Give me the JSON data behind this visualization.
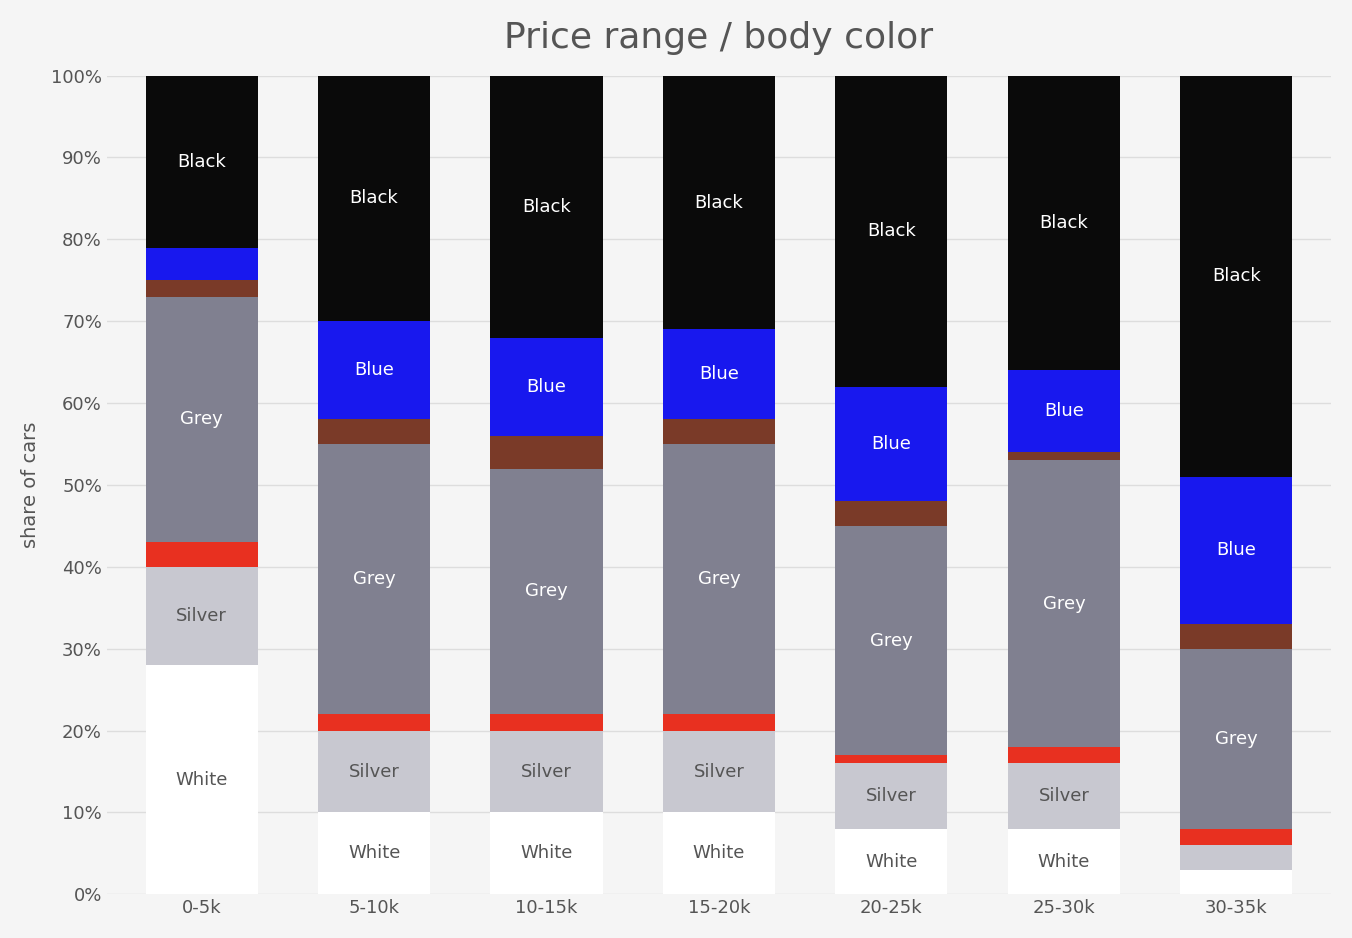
{
  "categories": [
    "0-5k",
    "5-10k",
    "10-15k",
    "15-20k",
    "20-25k",
    "25-30k",
    "30-35k"
  ],
  "color_map": {
    "White": "#ffffff",
    "Silver": "#c8c8d0",
    "Red": "#e83020",
    "Grey": "#808090",
    "Brown": "#7a3a28",
    "Blue": "#1818ee",
    "Black": "#0a0a0a"
  },
  "segments": {
    "White": [
      28,
      10,
      10,
      10,
      8,
      8,
      3
    ],
    "Silver": [
      12,
      10,
      10,
      10,
      8,
      8,
      3
    ],
    "Red": [
      3,
      2,
      2,
      2,
      1,
      2,
      2
    ],
    "Grey": [
      30,
      33,
      30,
      33,
      28,
      35,
      22
    ],
    "Brown": [
      2,
      3,
      4,
      3,
      3,
      1,
      3
    ],
    "Blue": [
      4,
      12,
      12,
      11,
      14,
      10,
      18
    ],
    "Black": [
      21,
      30,
      32,
      31,
      38,
      36,
      49
    ]
  },
  "title": "Price range / body color",
  "ylabel": "share of cars",
  "title_fontsize": 26,
  "label_fontsize": 13,
  "background_color": "#f5f5f5",
  "grid_color": "#dddddd",
  "text_color": "#555555"
}
